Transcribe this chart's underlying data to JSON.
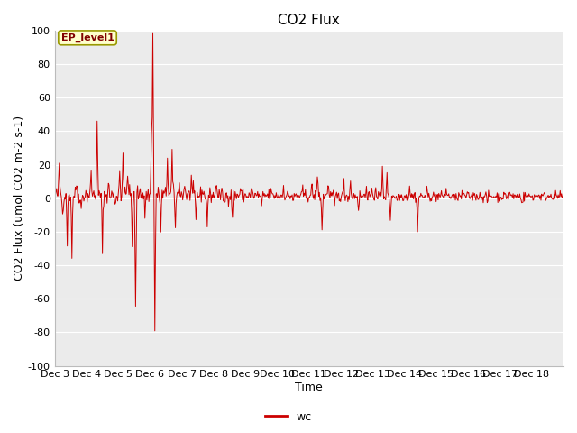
{
  "title": "CO2 Flux",
  "xlabel": "Time",
  "ylabel": "CO2 Flux (umol CO2 m-2 s-1)",
  "ylim": [
    -100,
    100
  ],
  "yticks": [
    -100,
    -80,
    -60,
    -40,
    -20,
    0,
    20,
    40,
    60,
    80,
    100
  ],
  "xtick_labels": [
    "Dec 3",
    "Dec 4",
    "Dec 5",
    "Dec 6",
    "Dec 7",
    "Dec 8",
    "Dec 9",
    "Dec 10",
    "Dec 11",
    "Dec 12",
    "Dec 13",
    "Dec 14",
    "Dec 15",
    "Dec 16",
    "Dec 17",
    "Dec 18"
  ],
  "line_color": "#cc0000",
  "plot_bg_color": "#ebebeb",
  "grid_color": "#ffffff",
  "legend_label": "wc",
  "annotation_text": "EP_level1",
  "annotation_bg": "#ffffcc",
  "annotation_border": "#999900",
  "annotation_text_color": "#800000",
  "title_fontsize": 11,
  "axis_fontsize": 9,
  "tick_fontsize": 8,
  "n_days": 16,
  "pts_per_day": 48
}
